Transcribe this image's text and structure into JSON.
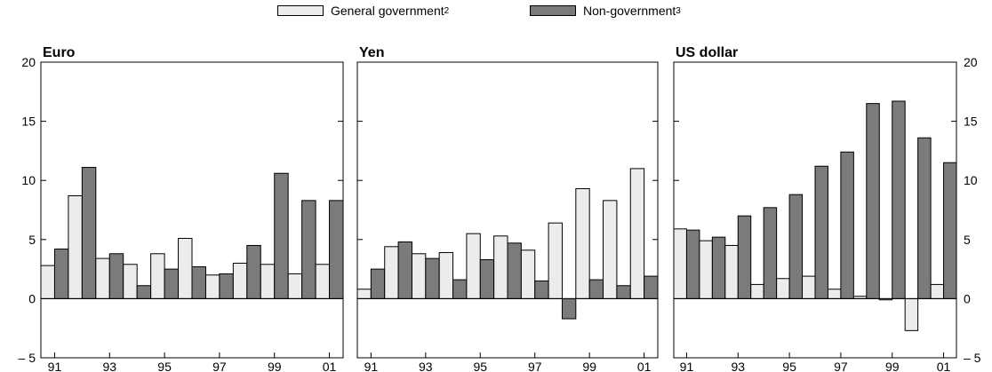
{
  "legend": {
    "gov_label": "General government",
    "gov_sup": "2",
    "nongov_label": "Non-government",
    "nongov_sup": "3"
  },
  "colors": {
    "gov": "#ececec",
    "nongov": "#7b7b7b",
    "stroke": "#000000"
  },
  "chart_data": [
    {
      "type": "bar",
      "title": "Euro",
      "categories": [
        "91",
        "92",
        "93",
        "94",
        "95",
        "96",
        "97",
        "98",
        "99",
        "00",
        "01"
      ],
      "x_tick_labels": [
        "91",
        "93",
        "95",
        "97",
        "99",
        "01"
      ],
      "ylim": [
        -5,
        20
      ],
      "yticks": [
        -5,
        0,
        5,
        10,
        15,
        20
      ],
      "series": [
        {
          "name": "General government",
          "values": [
            2.8,
            8.7,
            3.4,
            2.9,
            3.8,
            5.1,
            2.0,
            3.0,
            2.9,
            2.1,
            2.9
          ]
        },
        {
          "name": "Non-government",
          "values": [
            4.2,
            11.1,
            3.8,
            1.1,
            2.5,
            2.7,
            2.1,
            4.5,
            10.6,
            8.3,
            8.3
          ]
        }
      ]
    },
    {
      "type": "bar",
      "title": "Yen",
      "categories": [
        "91",
        "92",
        "93",
        "94",
        "95",
        "96",
        "97",
        "98",
        "99",
        "00",
        "01"
      ],
      "x_tick_labels": [
        "91",
        "93",
        "95",
        "97",
        "99",
        "01"
      ],
      "ylim": [
        -5,
        20
      ],
      "yticks": [
        -5,
        0,
        5,
        10,
        15,
        20
      ],
      "series": [
        {
          "name": "General government",
          "values": [
            0.8,
            4.4,
            3.8,
            3.9,
            5.5,
            5.3,
            4.1,
            6.4,
            9.3,
            8.3,
            11.0
          ]
        },
        {
          "name": "Non-government",
          "values": [
            2.5,
            4.8,
            3.4,
            1.6,
            3.3,
            4.7,
            1.5,
            -1.7,
            1.6,
            1.1,
            1.9
          ]
        }
      ]
    },
    {
      "type": "bar",
      "title": "US dollar",
      "categories": [
        "91",
        "92",
        "93",
        "94",
        "95",
        "96",
        "97",
        "98",
        "99",
        "00",
        "01"
      ],
      "x_tick_labels": [
        "91",
        "93",
        "95",
        "97",
        "99",
        "01"
      ],
      "ylim": [
        -5,
        20
      ],
      "yticks": [
        -5,
        0,
        5,
        10,
        15,
        20
      ],
      "series": [
        {
          "name": "General government",
          "values": [
            5.9,
            4.9,
            4.5,
            1.2,
            1.7,
            1.9,
            0.8,
            0.2,
            -0.1,
            -2.7,
            1.2
          ]
        },
        {
          "name": "Non-government",
          "values": [
            5.8,
            5.2,
            7.0,
            7.7,
            8.8,
            11.2,
            12.4,
            16.5,
            16.7,
            13.6,
            11.5
          ]
        }
      ]
    }
  ]
}
